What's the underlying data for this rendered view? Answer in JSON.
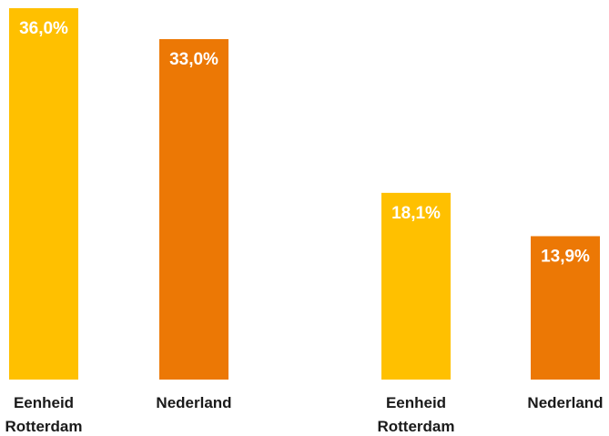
{
  "chart_data": {
    "type": "bar",
    "categories": [
      [
        "Eenheid",
        "Rotterdam"
      ],
      [
        "Nederland"
      ],
      [
        "Eenheid",
        "Rotterdam"
      ],
      [
        "Nederland"
      ]
    ],
    "values": [
      36.0,
      33.0,
      18.1,
      13.9
    ],
    "value_labels": [
      "36,0%",
      "33,0%",
      "18,1%",
      "13,9%"
    ],
    "bar_colors": [
      "#FFC000",
      "#EC7805",
      "#FFC000",
      "#EC7805"
    ],
    "ylim": [
      0,
      36
    ],
    "grid": false,
    "legend": "none"
  }
}
